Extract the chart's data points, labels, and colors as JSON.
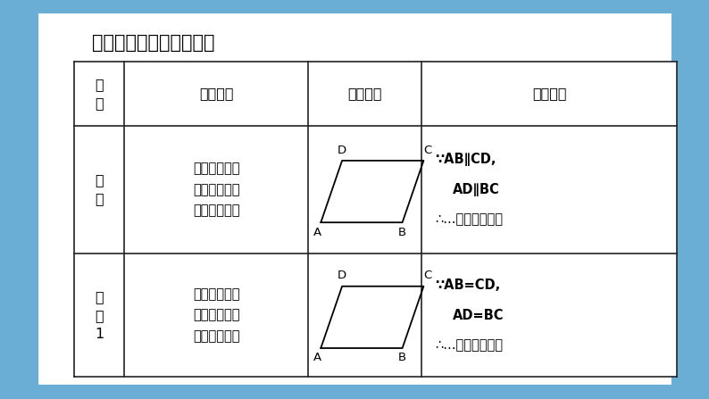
{
  "background_color": "#6aaed6",
  "inner_bg": "#ffffff",
  "title": "平行四边形的判定方法：",
  "title_fontsize": 15,
  "col_boundaries": [
    0.105,
    0.175,
    0.435,
    0.595,
    0.955
  ],
  "row_boundaries": [
    0.845,
    0.685,
    0.365,
    0.055
  ],
  "header_col0": "判\n定",
  "header_col1": "文字语言",
  "header_col2": "图形语言",
  "header_col3": "符号语言",
  "row1_col0": "定\n义",
  "row1_col1": "两组对边分别\n平行的四边形\n是平行四边形",
  "row1_sym1": "∵AB∥CD,",
  "row1_sym2": "AD∥BC",
  "row1_sym3": "∴...是平行四边形",
  "row2_col0": "定\n理\n1",
  "row2_col1": "两组对边分别\n相等的四边形\n是平行四边形",
  "row2_sym1": "∵AB=CD,",
  "row2_sym2": "AD=BC",
  "row2_sym3": "∴...是平行四边形",
  "border_color": "#222222",
  "font_color": "#000000"
}
